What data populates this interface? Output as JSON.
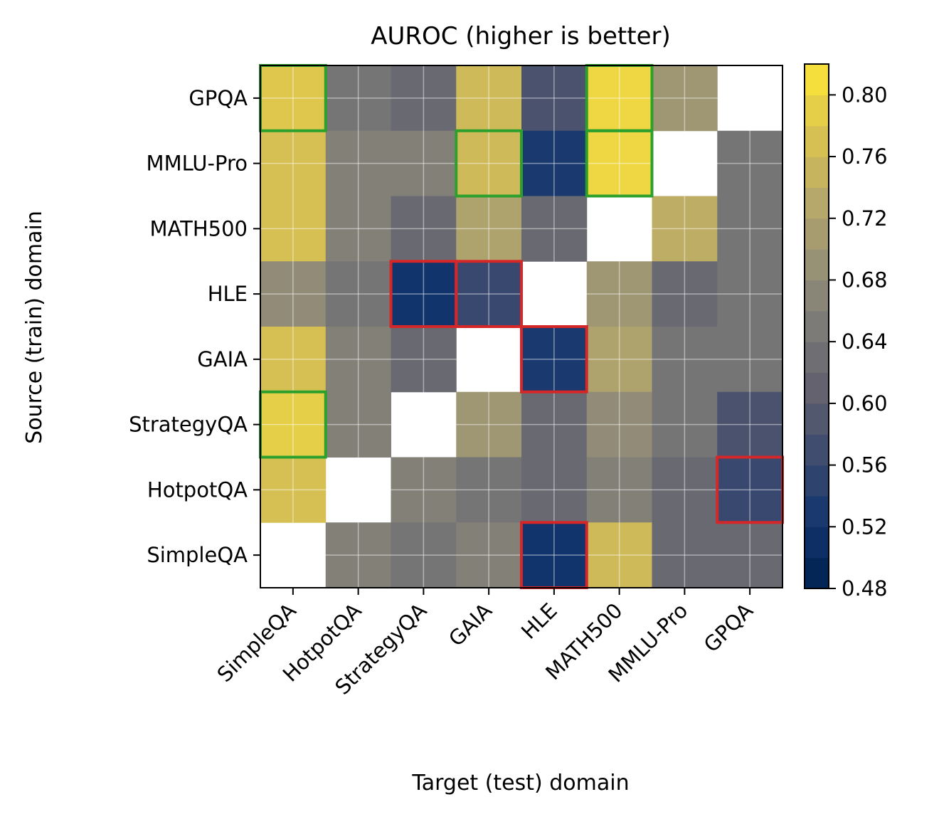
{
  "chart_data": {
    "type": "heatmap",
    "title": "AUROC (higher is better)",
    "xlabel": "Target (test) domain",
    "ylabel": "Source (train) domain",
    "x_categories": [
      "SimpleQA",
      "HotpotQA",
      "StrategyQA",
      "GAIA",
      "HLE",
      "MATH500",
      "MMLU-Pro",
      "GPQA"
    ],
    "y_categories": [
      "GPQA",
      "MMLU-Pro",
      "MATH500",
      "HLE",
      "GAIA",
      "StrategyQA",
      "HotpotQA",
      "SimpleQA"
    ],
    "values": [
      [
        0.78,
        0.64,
        0.62,
        0.76,
        0.58,
        0.8,
        0.7,
        null
      ],
      [
        0.77,
        0.66,
        0.66,
        0.76,
        0.53,
        0.8,
        null,
        0.64
      ],
      [
        0.77,
        0.66,
        0.62,
        0.72,
        0.62,
        null,
        0.74,
        0.64
      ],
      [
        0.68,
        0.64,
        0.52,
        0.56,
        null,
        0.7,
        0.62,
        0.64
      ],
      [
        0.77,
        0.66,
        0.62,
        null,
        0.53,
        0.72,
        0.64,
        0.64
      ],
      [
        0.79,
        0.66,
        null,
        0.7,
        0.62,
        0.68,
        0.64,
        0.58
      ],
      [
        0.77,
        null,
        0.66,
        0.64,
        0.62,
        0.66,
        0.62,
        0.56
      ],
      [
        null,
        0.66,
        0.64,
        0.66,
        0.52,
        0.76,
        0.62,
        0.62
      ]
    ],
    "colorbar": {
      "min": 0.48,
      "max": 0.82,
      "ticks": [
        "0.48",
        "0.52",
        "0.56",
        "0.60",
        "0.64",
        "0.68",
        "0.72",
        "0.76",
        "0.80"
      ]
    },
    "highlights": {
      "best_color": "#2ca02c",
      "worst_color": "#d62728",
      "best": [
        [
          0,
          0
        ],
        [
          5,
          0
        ],
        [
          1,
          3
        ],
        [
          0,
          5
        ],
        [
          1,
          5
        ]
      ],
      "worst": [
        [
          3,
          2
        ],
        [
          3,
          3
        ],
        [
          4,
          4
        ],
        [
          7,
          4
        ],
        [
          6,
          7
        ]
      ]
    },
    "grid": true,
    "colormap": "cividis"
  }
}
